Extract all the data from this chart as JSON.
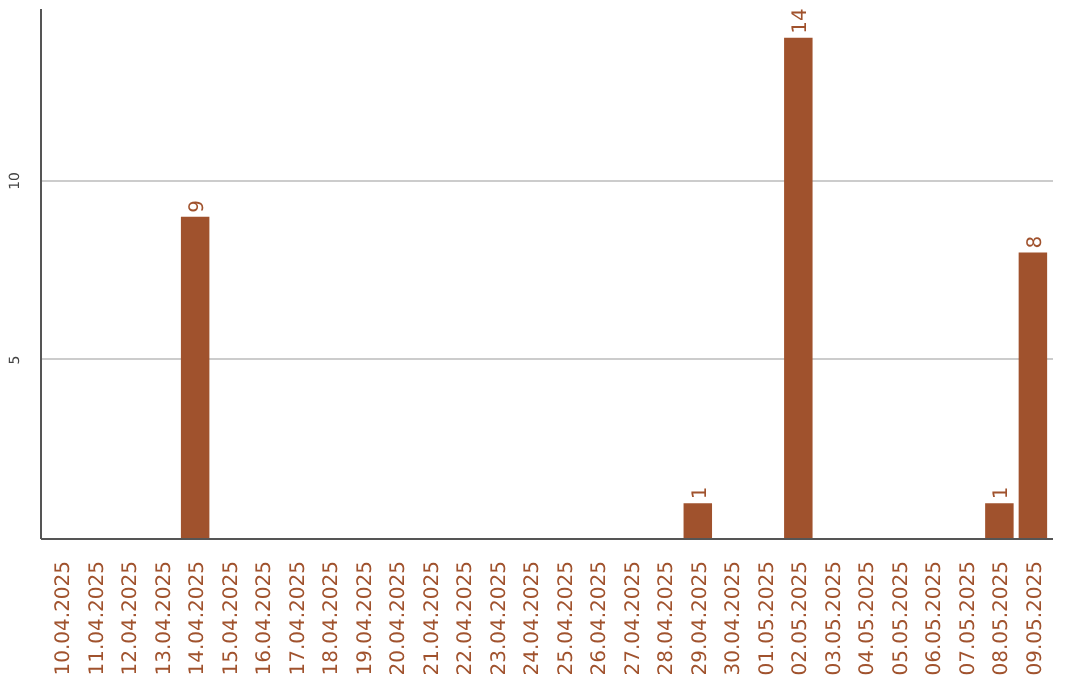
{
  "chart_data": {
    "type": "bar",
    "categories": [
      "10.04.2025",
      "11.04.2025",
      "12.04.2025",
      "13.04.2025",
      "14.04.2025",
      "15.04.2025",
      "16.04.2025",
      "17.04.2025",
      "18.04.2025",
      "19.04.2025",
      "20.04.2025",
      "21.04.2025",
      "22.04.2025",
      "23.04.2025",
      "24.04.2025",
      "25.04.2025",
      "26.04.2025",
      "27.04.2025",
      "28.04.2025",
      "29.04.2025",
      "30.04.2025",
      "01.05.2025",
      "02.05.2025",
      "03.05.2025",
      "04.05.2025",
      "05.05.2025",
      "06.05.2025",
      "07.05.2025",
      "08.05.2025",
      "09.05.2025"
    ],
    "values": [
      0,
      0,
      0,
      0,
      9,
      0,
      0,
      0,
      0,
      0,
      0,
      0,
      0,
      0,
      0,
      0,
      0,
      0,
      0,
      1,
      0,
      0,
      14,
      0,
      0,
      0,
      0,
      0,
      1,
      8
    ],
    "value_labels": [
      null,
      null,
      null,
      null,
      "9",
      null,
      null,
      null,
      null,
      null,
      null,
      null,
      null,
      null,
      null,
      null,
      null,
      null,
      null,
      "1",
      null,
      null,
      "14",
      null,
      null,
      null,
      null,
      null,
      "1",
      "8"
    ],
    "color": "#a0522d",
    "ylim": [
      0,
      14.8
    ],
    "yticks": [
      5,
      10
    ],
    "grid": "y"
  }
}
